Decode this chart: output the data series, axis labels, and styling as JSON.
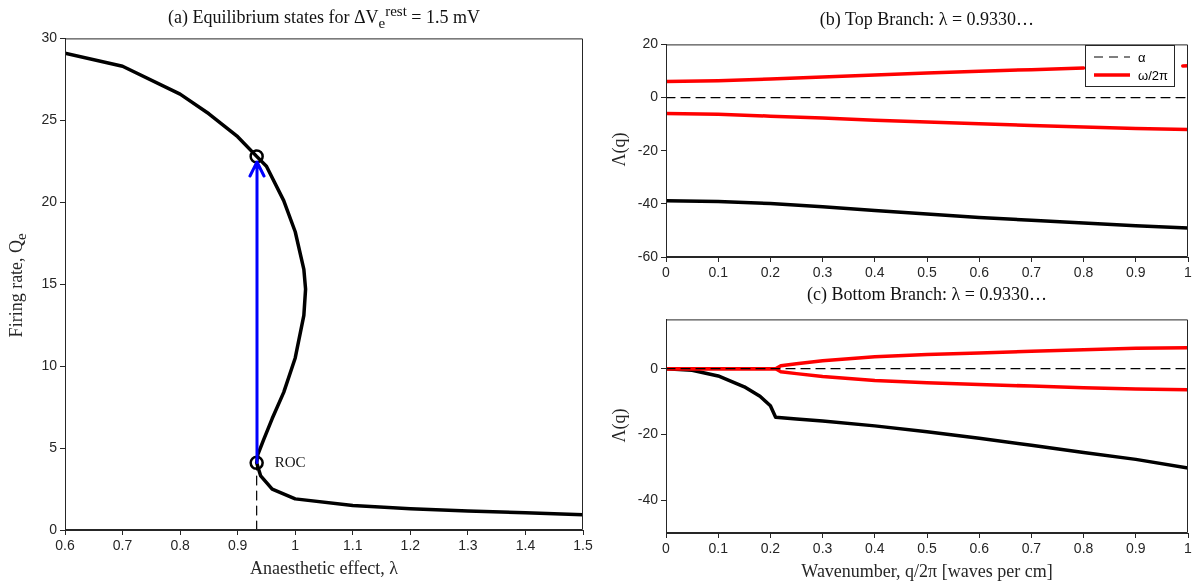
{
  "chart_data": [
    {
      "type": "line",
      "title": "(a) Equilibrium states for ΔV$_{e}$$^{rest}$ = 1.5 mV",
      "xlabel": "Anaesthetic effect, λ",
      "ylabel": "Firing rate, Q$_{e}$",
      "xlim": [
        0.6,
        1.5
      ],
      "ylim": [
        0,
        30
      ],
      "xticks": [
        0.6,
        0.7,
        0.8,
        0.9,
        1,
        1.1,
        1.2,
        1.3,
        1.4,
        1.5
      ],
      "yticks": [
        0,
        5,
        10,
        15,
        20,
        25,
        30
      ],
      "grid": false,
      "legend": false,
      "annotations": [
        {
          "text": "ROC",
          "x": 0.933,
          "y": 4.1
        }
      ],
      "series": [
        {
          "color": "#000000",
          "x": [
            0.6,
            0.7,
            0.8,
            0.85,
            0.9,
            0.933,
            0.95,
            0.98,
            1.0,
            1.015,
            1.018,
            1.015,
            1.0,
            0.98,
            0.96,
            0.945,
            0.935,
            0.933,
            0.94,
            0.96,
            1.0,
            1.1,
            1.2,
            1.3,
            1.4,
            1.5
          ],
          "values": [
            29.1,
            28.3,
            26.6,
            25.4,
            24.0,
            22.8,
            22.2,
            20.1,
            18.2,
            15.9,
            14.7,
            13.1,
            10.5,
            8.4,
            6.8,
            5.5,
            4.6,
            4.1,
            3.3,
            2.5,
            1.9,
            1.5,
            1.3,
            1.16,
            1.05,
            0.93
          ]
        },
        {
          "color": "#000000",
          "line_style": "dashed",
          "x": [
            0.933,
            0.933
          ],
          "values": [
            0,
            4.1
          ]
        },
        {
          "type": "scatter",
          "color": "#000000",
          "marker": "circle",
          "x": [
            0.933,
            0.933
          ],
          "values": [
            22.8,
            4.1
          ]
        }
      ]
    },
    {
      "type": "line",
      "title": "(b) Top Branch: λ = 0.9330…",
      "ylabel": "Λ(q)",
      "xlim": [
        0,
        1
      ],
      "ylim": [
        -60,
        20
      ],
      "xticks": [
        0,
        0.1,
        0.2,
        0.3,
        0.4,
        0.5,
        0.6,
        0.7,
        0.8,
        0.9,
        1
      ],
      "yticks": [
        -60,
        -40,
        -20,
        0,
        20
      ],
      "grid": false,
      "legend": "top right",
      "series": [
        {
          "name": "α",
          "color": "#000000",
          "line_style": "dashed",
          "x": [
            0,
            1
          ],
          "values": [
            0,
            0
          ]
        },
        {
          "name": "ω/2π",
          "color": "#ff0000",
          "x": [
            0,
            0.1,
            0.2,
            0.3,
            0.4,
            0.5,
            0.6,
            0.7,
            0.8,
            0.9,
            0.99,
            1
          ],
          "values": [
            6.0,
            6.3,
            7.0,
            7.7,
            8.5,
            9.2,
            9.9,
            10.5,
            11.1,
            null,
            11.9,
            12.0
          ]
        },
        {
          "color": "#ff0000",
          "x": [
            0,
            0.1,
            0.2,
            0.3,
            0.4,
            0.5,
            0.6,
            0.7,
            0.8,
            0.9,
            1
          ],
          "values": [
            -6.0,
            -6.3,
            -7.0,
            -7.7,
            -8.5,
            -9.2,
            -9.9,
            -10.5,
            -11.1,
            -11.6,
            -12.0
          ]
        },
        {
          "color": "#000000",
          "x": [
            0,
            0.1,
            0.2,
            0.3,
            0.4,
            0.5,
            0.6,
            0.7,
            0.8,
            0.9,
            1
          ],
          "values": [
            -38.8,
            -39.1,
            -39.9,
            -41.1,
            -42.5,
            -43.8,
            -45.1,
            -46.2,
            -47.2,
            -48.2,
            -49.1
          ]
        }
      ]
    },
    {
      "type": "line",
      "title": "(c) Bottom Branch: λ = 0.9330…",
      "xlabel": "Wavenumber, q/2π [waves per cm]",
      "ylabel": "Λ(q)",
      "xlim": [
        0,
        1
      ],
      "ylim": [
        -50,
        15
      ],
      "xticks": [
        0,
        0.1,
        0.2,
        0.3,
        0.4,
        0.5,
        0.6,
        0.7,
        0.8,
        0.9,
        1
      ],
      "yticks": [
        -40,
        -20,
        0
      ],
      "grid": false,
      "legend": false,
      "series": [
        {
          "color": "#000000",
          "line_style": "dashed",
          "x": [
            0,
            1
          ],
          "values": [
            0,
            0
          ]
        },
        {
          "color": "#ff0000",
          "x": [
            0,
            0.1,
            0.21,
            0.22,
            0.25,
            0.3,
            0.4,
            0.5,
            0.6,
            0.7,
            0.8,
            0.9,
            1
          ],
          "values": [
            0,
            0,
            0,
            0.9,
            1.5,
            2.4,
            3.6,
            4.3,
            4.8,
            5.3,
            5.8,
            6.2,
            6.4
          ]
        },
        {
          "color": "#ff0000",
          "x": [
            0,
            0.1,
            0.21,
            0.22,
            0.25,
            0.3,
            0.4,
            0.5,
            0.6,
            0.7,
            0.8,
            0.9,
            1
          ],
          "values": [
            0,
            0,
            0,
            -0.9,
            -1.5,
            -2.4,
            -3.6,
            -4.3,
            -4.8,
            -5.3,
            -5.8,
            -6.2,
            -6.4
          ]
        },
        {
          "color": "#000000",
          "x": [
            0,
            0.05,
            0.1,
            0.15,
            0.18,
            0.2,
            0.21,
            0.25,
            0.3,
            0.4,
            0.5,
            0.6,
            0.7,
            0.8,
            0.9,
            1
          ],
          "values": [
            0,
            -0.5,
            -2.2,
            -5.5,
            -8.4,
            -11.3,
            -14.8,
            -15.3,
            -15.9,
            -17.4,
            -19.2,
            -21.2,
            -23.3,
            -25.5,
            -27.6,
            -30.2
          ]
        }
      ]
    }
  ]
}
